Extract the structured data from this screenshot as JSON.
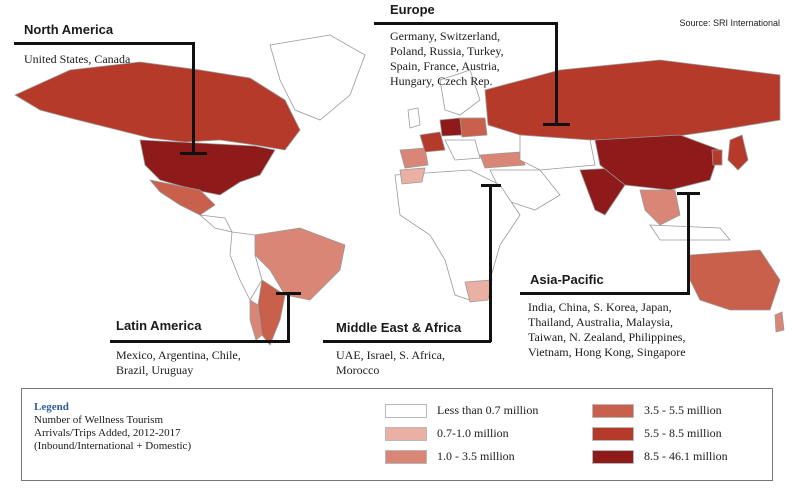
{
  "source": "Source: SRI International",
  "colors": {
    "ocean": "#ffffff",
    "land_none": "#ffffff",
    "land_border": "#9a9a9a",
    "bin1": "#ffffff",
    "bin2": "#eab0a4",
    "bin3": "#d98676",
    "bin4": "#c8604c",
    "bin5": "#b63a2a",
    "bin6": "#8e1a1a",
    "leader": "#111111"
  },
  "regions": [
    {
      "title": "North America",
      "countries": "United States, Canada"
    },
    {
      "title": "Europe",
      "countries": "Germany, Switzerland,\nPoland, Russia, Turkey,\nSpain, France, Austria,\nHungary, Czech Rep."
    },
    {
      "title": "Latin America",
      "countries": "Mexico, Argentina, Chile,\nBrazil, Uruguay"
    },
    {
      "title": "Middle East & Africa",
      "countries": "UAE, Israel, S. Africa,\nMorocco"
    },
    {
      "title": "Asia-Pacific",
      "countries": "India, China, S. Korea, Japan,\nThailand, Australia, Malaysia,\nTaiwan, N. Zealand, Philippines,\nVietnam, Hong Kong, Singapore"
    }
  ],
  "legend": {
    "title": "Legend",
    "description": "Number of Wellness Tourism\nArrivals/Trips Added, 2012-2017\n(Inbound/International + Domestic)",
    "bins": [
      {
        "label": "Less than 0.7 million",
        "color": "#ffffff"
      },
      {
        "label": "0.7-1.0 million",
        "color": "#eab0a4"
      },
      {
        "label": "1.0 - 3.5 million",
        "color": "#d98676"
      },
      {
        "label": "3.5 - 5.5 million",
        "color": "#c8604c"
      },
      {
        "label": "5.5 - 8.5 million",
        "color": "#b63a2a"
      },
      {
        "label": "8.5 - 46.1 million",
        "color": "#8e1a1a"
      }
    ]
  }
}
